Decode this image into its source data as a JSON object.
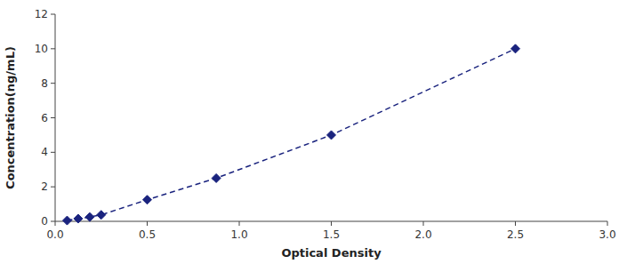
{
  "chart_data": {
    "type": "line",
    "x": [
      0.065,
      0.125,
      0.188,
      0.25,
      0.5,
      0.875,
      1.5,
      2.5
    ],
    "values": [
      0.047,
      0.156,
      0.25,
      0.375,
      1.25,
      2.5,
      5.0,
      10.0
    ],
    "xlabel": "Optical Density",
    "ylabel": "Concentration(ng/mL)",
    "xlim": [
      0,
      3
    ],
    "ylim": [
      0,
      12
    ],
    "xticks": [
      {
        "value": 0,
        "label": "0.0"
      },
      {
        "value": 0.5,
        "label": "0.5"
      },
      {
        "value": 1,
        "label": "1.0"
      },
      {
        "value": 1.5,
        "label": "1.5"
      },
      {
        "value": 2,
        "label": "2.0"
      },
      {
        "value": 2.5,
        "label": "2.5"
      },
      {
        "value": 3,
        "label": "3.0"
      }
    ],
    "yticks": [
      0,
      2,
      4,
      6,
      8,
      10,
      12
    ],
    "color": "#1a237e",
    "marker": "diamond",
    "line_style": "dashed",
    "grid": false
  }
}
